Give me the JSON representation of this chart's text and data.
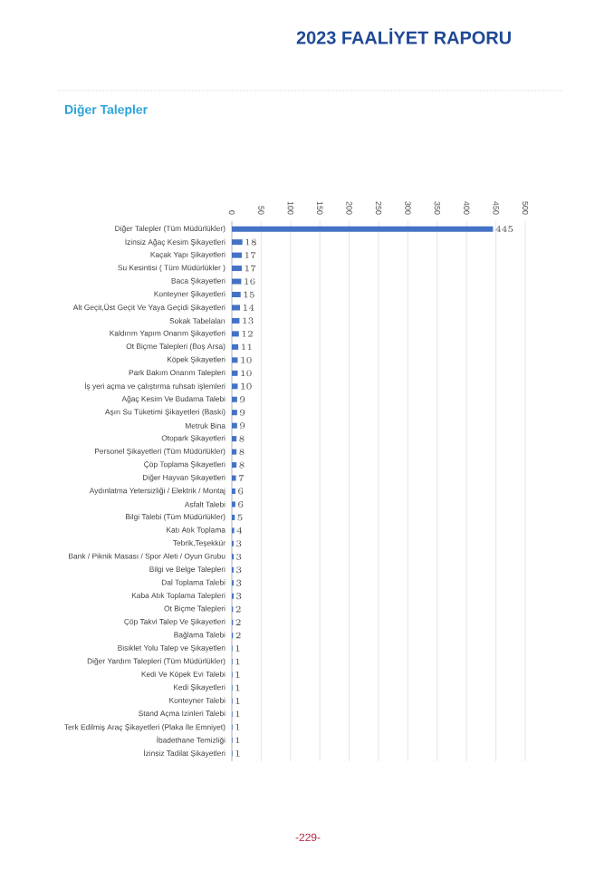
{
  "chart_data": {
    "type": "bar",
    "orientation": "horizontal",
    "title": "Diğer Talepler",
    "annotations": [
      "2023 FAALİYET RAPORU",
      "-229-"
    ],
    "categories": [
      "Diğer Talepler (Tüm Müdürlükler)",
      "İzinsiz Ağaç Kesim Şikayetleri",
      "Kaçak Yapı Şikayetleri",
      "Su Kesintisi ( Tüm Müdürlükler )",
      "Baca Şikayetleri",
      "Konteyner Şikayetleri",
      "Alt Geçit,Üst Geçit Ve Yaya Geçidi Şikayetleri",
      "Sokak Tabelaları",
      "Kaldırım Yapım Onarım Şikayetleri",
      "Ot Biçme Talepleri (Boş Arsa)",
      "Köpek Şikayetleri",
      "Park Bakım Onarım Talepleri",
      "İş yeri açma ve çalıştırma ruhsatı işlemleri",
      "Ağaç Kesim Ve Budama Talebi",
      "Aşırı Su Tüketimi Şikayetleri (Baski)",
      "Metruk Bina",
      "Otopark Şikayetleri",
      "Personel Şikayetleri (Tüm Müdürlükler)",
      "Çöp Toplama Şikayetleri",
      "Diğer Hayvan Şikayetleri",
      "Aydınlatma Yetersizliği / Elektrik / Montaj",
      "Asfalt Talebi",
      "Bilgi Talebi (Tüm Müdürlükler)",
      "Katı Atık Toplama",
      "Tebrik,Teşekkür",
      "Bank / Piknik Masası / Spor Aleti / Oyun Grubu",
      "Bilgi ve Belge Talepleri",
      "Dal Toplama Talebi",
      "Kaba Atık Toplama Talepleri",
      "Ot Biçme Talepleri",
      "Çöp Takvi Talep Ve Şikayetleri",
      "Bağlama Talebi",
      "Bisiklet Yolu Talep ve Şikayetleri",
      "Diğer Yardım Talepleri (Tüm Müdürlükler)",
      "Kedi Ve Köpek Evi Talebi",
      "Kedi Şikayetleri",
      "Konteyner Talebi",
      "Stand Açma Izinleri Talebi",
      "Terk Edilmiş Araç Şikayetleri (Plaka İle Emniyet)",
      "İbadethane Temizliği",
      "İzinsiz Tadilat Şikayetleri"
    ],
    "values": [
      445,
      18,
      17,
      17,
      16,
      15,
      14,
      13,
      12,
      11,
      10,
      10,
      10,
      9,
      9,
      9,
      8,
      8,
      8,
      7,
      6,
      6,
      5,
      4,
      3,
      3,
      3,
      3,
      3,
      2,
      2,
      2,
      1,
      1,
      1,
      1,
      1,
      1,
      1,
      1,
      1
    ],
    "color": "#4472c4",
    "data_labels": true,
    "grid": "x",
    "xlim": [
      0,
      500
    ],
    "xticks": [
      0,
      50,
      100,
      150,
      200,
      250,
      300,
      350,
      400,
      450,
      500
    ]
  }
}
